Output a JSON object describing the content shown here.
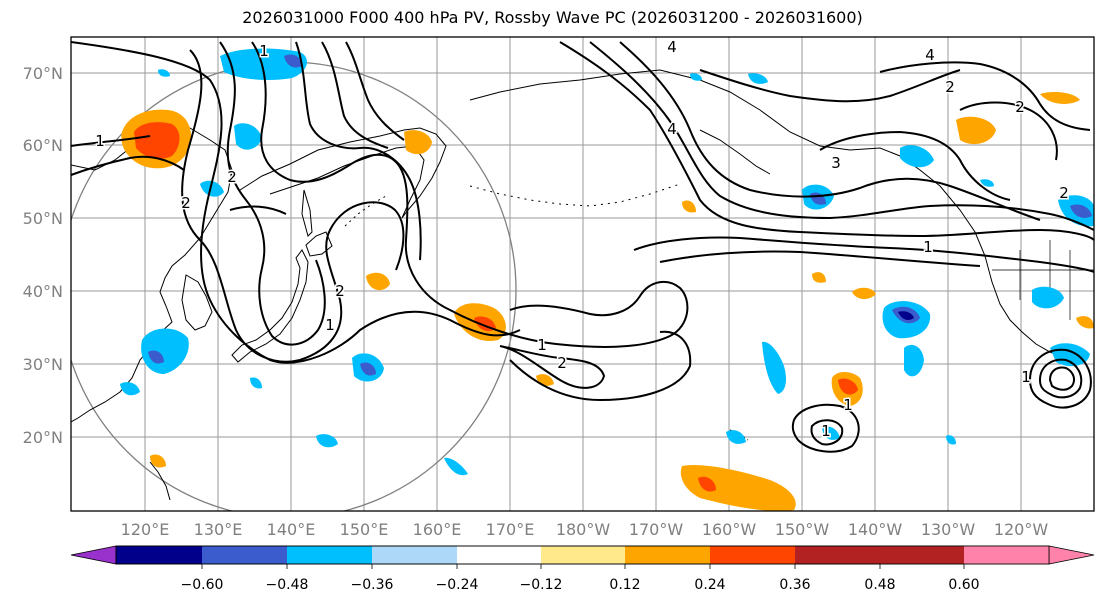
{
  "title": "2026031000 F000 400 hPa PV, Rossby Wave PC (2026031200 - 2026031600)",
  "map": {
    "lat_labels": [
      "70°N",
      "60°N",
      "50°N",
      "40°N",
      "30°N",
      "20°N"
    ],
    "lon_labels": [
      "120°E",
      "130°E",
      "140°E",
      "150°E",
      "160°E",
      "170°E",
      "180°W",
      "170°W",
      "160°W",
      "150°W",
      "140°W",
      "130°W",
      "120°W"
    ],
    "contour_labels": [
      "1",
      "2",
      "3",
      "4"
    ],
    "label_color": "#808080",
    "grid": true
  },
  "colorbar": {
    "ticks": [
      "−0.60",
      "−0.48",
      "−0.36",
      "−0.24",
      "−0.12",
      "0.12",
      "0.24",
      "0.36",
      "0.48",
      "0.60"
    ],
    "colors": [
      "#9932CC",
      "#00008B",
      "#3A5CCC",
      "#00BFFF",
      "#ADD8F7",
      "#FFFFFF",
      "#FFE98A",
      "#FFA500",
      "#FF4500",
      "#B22222",
      "#FF82AB"
    ]
  }
}
